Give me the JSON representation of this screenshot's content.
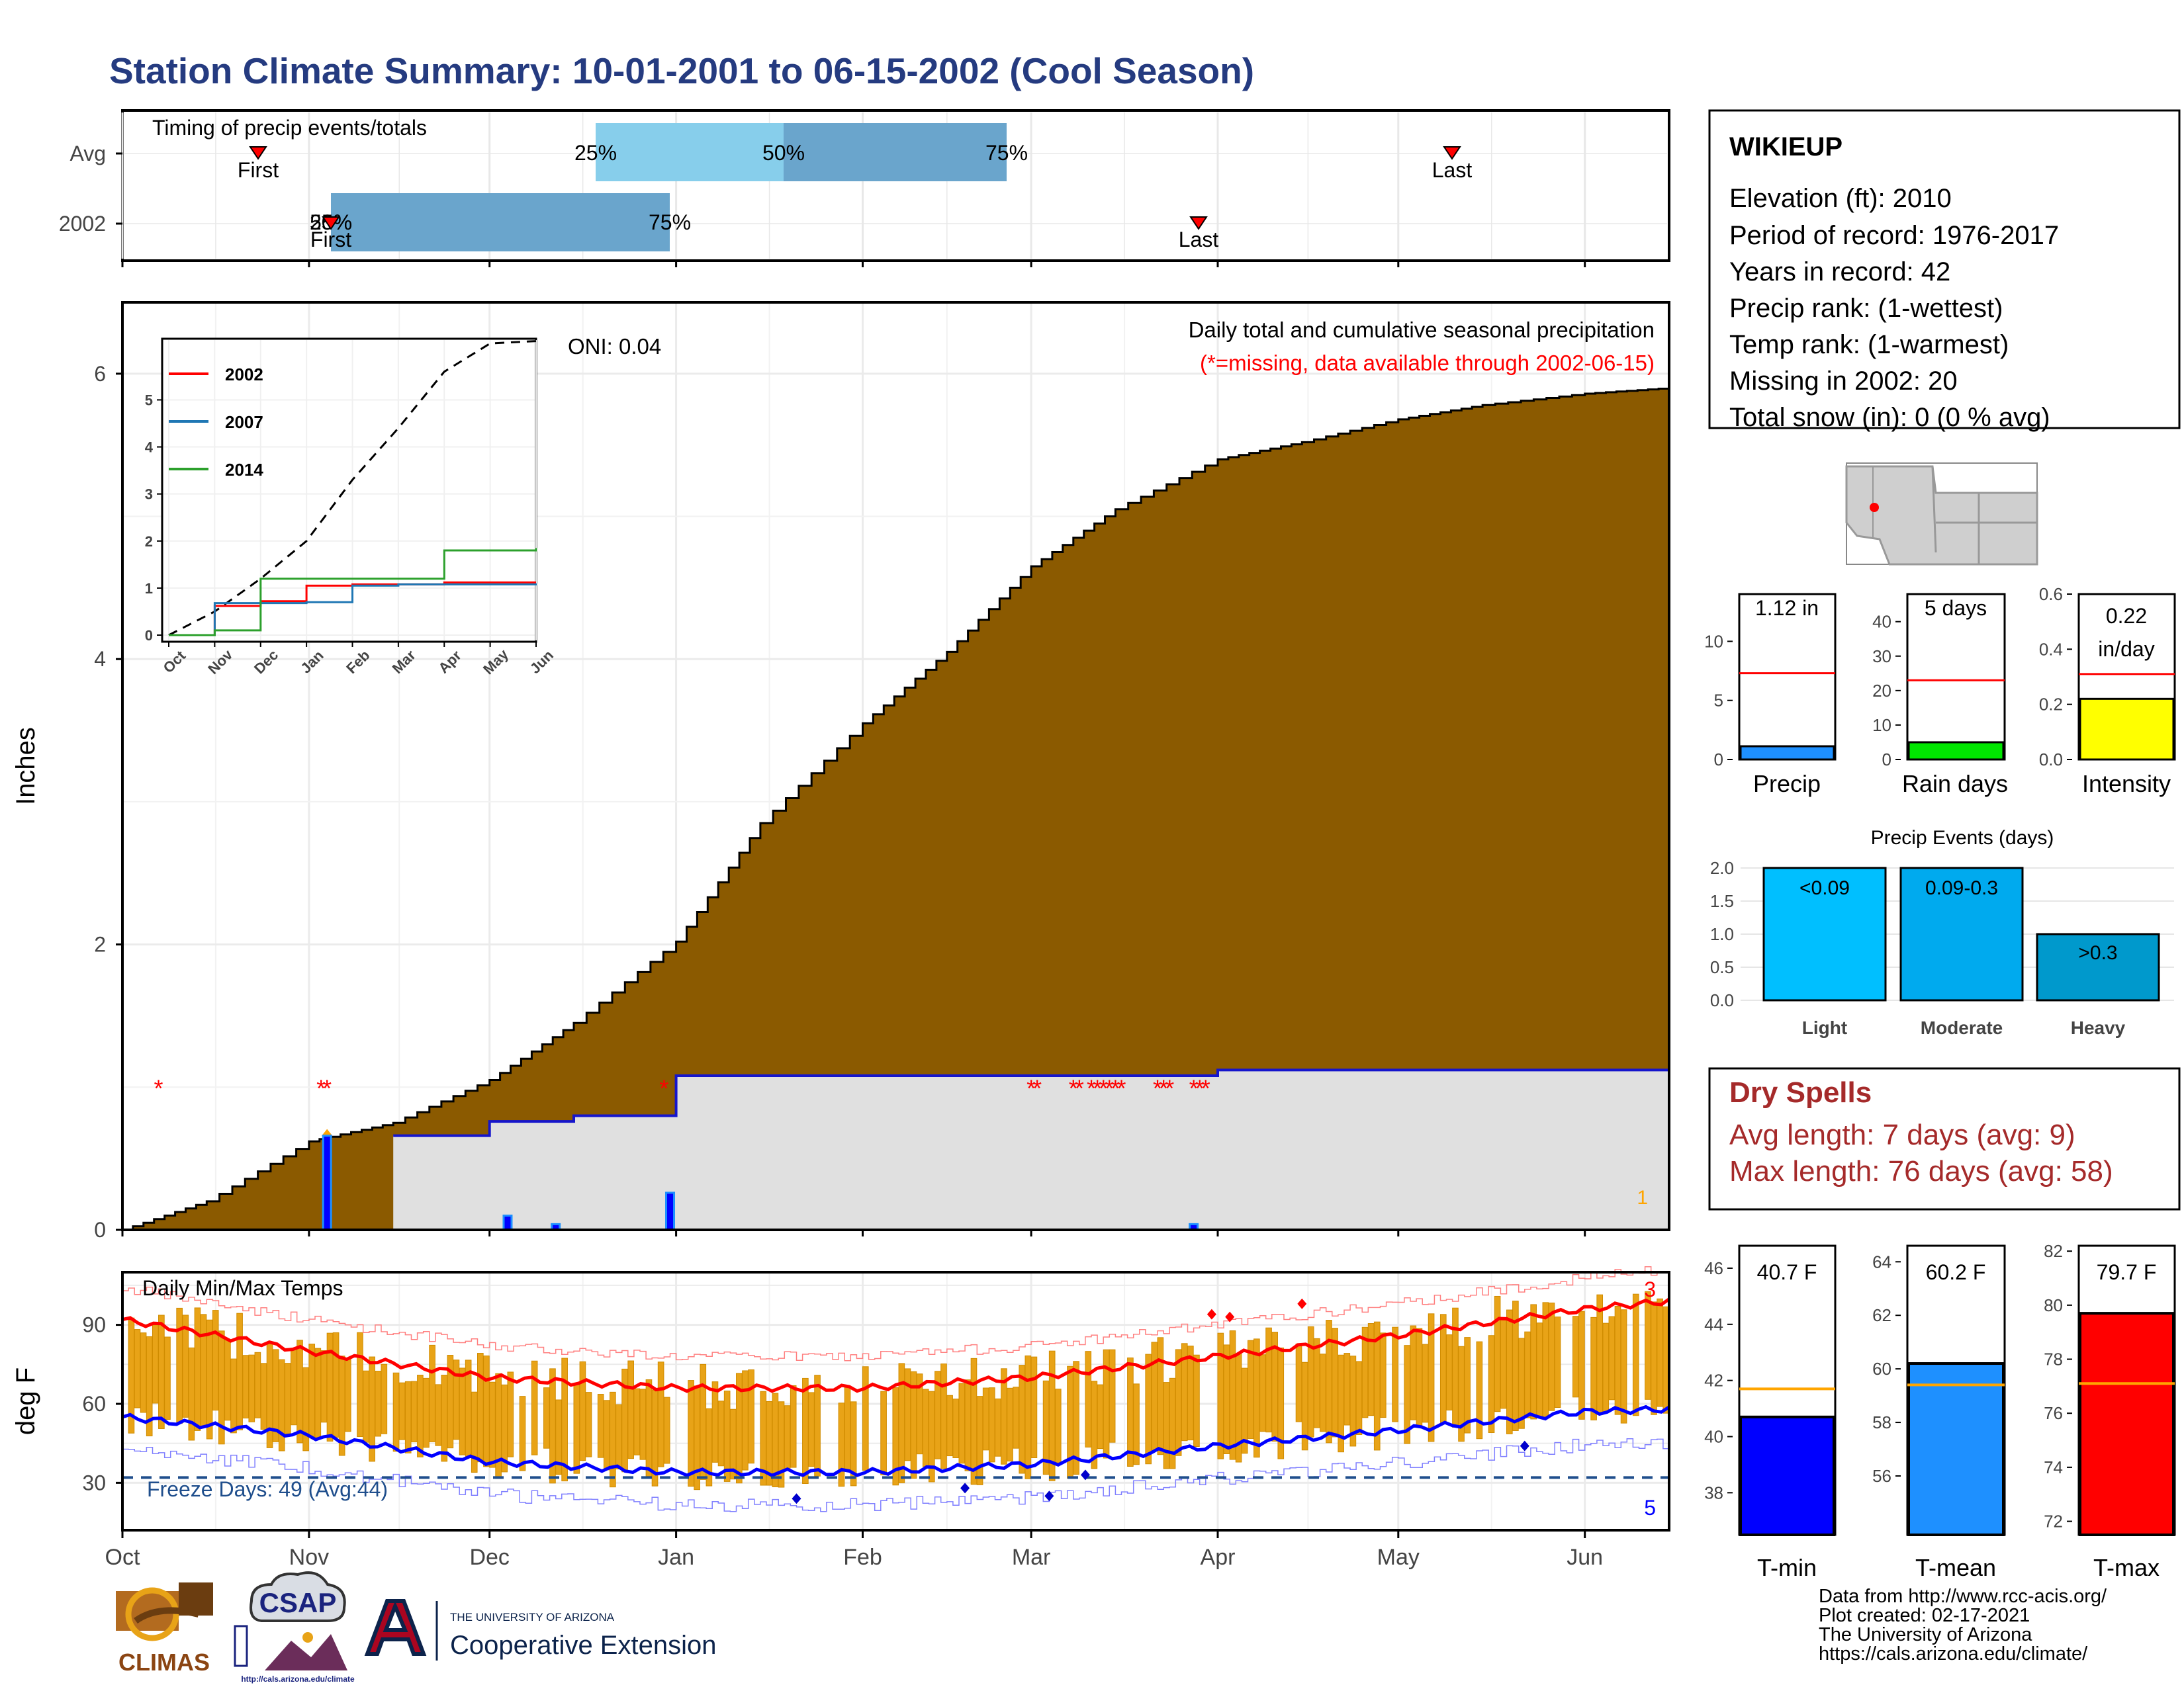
{
  "title": "Station Climate Summary: 10-01-2001 to 06-15-2002 (Cool Season)",
  "colors": {
    "title": "#253b80",
    "precip_fill": "#8b5a00",
    "avg_fill": "#e0e0e0",
    "avg_line": "#1515cc",
    "missing": "#ff0000",
    "timing_light": "#87ceeb",
    "timing_dark": "#6aa5cc",
    "dry_spells": "#a52a2a",
    "tmin": "#0000ff",
    "tmean": "#1e90ff",
    "tmax": "#ff0000",
    "temp_bar": "#e8a317",
    "avg_marker": "#ffa500",
    "freeze_line": "#1f4e8c"
  },
  "timing": {
    "title": "Timing of precip events/totals",
    "rows": [
      "Avg",
      "2002"
    ],
    "avg": {
      "first": "First",
      "last": "Last",
      "q25": "25%",
      "q50": "50%",
      "q75": "75%"
    },
    "y2002": {
      "first": "First",
      "last": "Last",
      "q25": "25%",
      "q50": "50%",
      "q75": "75%"
    }
  },
  "precip_panel": {
    "ylabel": "Inches",
    "oni": "ONI: 0.04",
    "subtitle": "Daily total and cumulative seasonal precipitation",
    "missing_note": "(*=missing, data available through 2002-06-15)",
    "yticks": [
      "0",
      "2",
      "4",
      "6"
    ],
    "corner_number": "1"
  },
  "inset": {
    "legend": [
      {
        "label": "2002",
        "color": "#ff0000"
      },
      {
        "label": "2007",
        "color": "#1f77b4"
      },
      {
        "label": "2014",
        "color": "#2ca02c"
      }
    ],
    "yticks": [
      "0",
      "1",
      "2",
      "3",
      "4",
      "5"
    ],
    "xticks": [
      "Oct",
      "Nov",
      "Dec",
      "Jan",
      "Feb",
      "Mar",
      "Apr",
      "May",
      "Jun"
    ]
  },
  "temp_panel": {
    "title": "Daily Min/Max Temps",
    "ylabel": "deg F",
    "yticks": [
      "30",
      "60",
      "90"
    ],
    "freeze_days": "Freeze Days: 49 (Avg:44)",
    "count_top": "3",
    "count_bottom": "5"
  },
  "xaxis_months": [
    "Oct",
    "Nov",
    "Dec",
    "Jan",
    "Feb",
    "Mar",
    "Apr",
    "May",
    "Jun"
  ],
  "station": {
    "name": "WIKIEUP",
    "lines": [
      "Elevation (ft): 2010",
      "Period of record: 1976-2017",
      "Years in record: 42",
      "Precip rank:  (1-wettest)",
      "Temp rank:  (1-warmest)",
      "Missing in 2002: 20",
      "Total snow (in): 0 (0 % avg)"
    ]
  },
  "mini_bars": [
    {
      "label": "Precip",
      "value_text": "1.12 in",
      "value": 1.12,
      "avg": 7.3,
      "ymax": 14,
      "yticks": [
        "0",
        "5",
        "10"
      ],
      "color": "#1e90ff"
    },
    {
      "label": "Rain days",
      "value_text": "5 days",
      "value": 5,
      "avg": 23,
      "ymax": 48,
      "yticks": [
        "0",
        "10",
        "20",
        "30",
        "40"
      ],
      "color": "#00e600"
    },
    {
      "label": "Intensity",
      "value_text_1": "0.22",
      "value_text_2": "in/day",
      "value": 0.22,
      "avg": 0.31,
      "ymax": 0.6,
      "yticks": [
        "0.0",
        "0.2",
        "0.4",
        "0.6"
      ],
      "color": "#ffff00"
    }
  ],
  "precip_events": {
    "title": "Precip Events (days)",
    "yticks": [
      "0.0",
      "0.5",
      "1.0",
      "1.5",
      "2.0"
    ],
    "bars": [
      {
        "label": "Light",
        "text": "<0.09",
        "value": 2,
        "color": "#00bfff"
      },
      {
        "label": "Moderate",
        "text": "0.09-0.3",
        "value": 2,
        "color": "#00aaee"
      },
      {
        "label": "Heavy",
        "text": ">0.3",
        "value": 1,
        "color": "#0099cc"
      }
    ]
  },
  "dry_spells": {
    "title": "Dry Spells",
    "avg_length": "Avg length: 7 days (avg: 9)",
    "max_length": "Max length: 76 days (avg: 58)"
  },
  "temp_bars": [
    {
      "label": "T-min",
      "value_text": "40.7 F",
      "value": 40.7,
      "avg": 41.7,
      "ymin": 36.5,
      "ymax": 46.8,
      "yticks": [
        "38",
        "40",
        "42",
        "44",
        "46"
      ],
      "color": "#0000ff"
    },
    {
      "label": "T-mean",
      "value_text": "60.2 F",
      "value": 60.2,
      "avg": 59.4,
      "ymin": 53.8,
      "ymax": 64.6,
      "yticks": [
        "56",
        "58",
        "60",
        "62",
        "64"
      ],
      "color": "#1e90ff"
    },
    {
      "label": "T-max",
      "value_text": "79.7 F",
      "value": 79.7,
      "avg": 77.1,
      "ymin": 71.5,
      "ymax": 82.2,
      "yticks": [
        "72",
        "74",
        "76",
        "78",
        "80",
        "82"
      ],
      "color": "#ff0000"
    }
  ],
  "credits": [
    "Data from http://www.rcc-acis.org/",
    "Plot created: 02-17-2021",
    "The University of Arizona",
    "https://cals.arizona.edu/climate/"
  ],
  "logos": {
    "climas": "CLIMAS",
    "csap": "CSAP",
    "csap_url": "http://cals.arizona.edu/climate",
    "ua_top": "THE UNIVERSITY OF ARIZONA",
    "ua_bottom": "Cooperative Extension"
  },
  "chart_data": [
    {
      "type": "area",
      "title": "Daily total and cumulative seasonal precipitation",
      "ylabel": "Inches",
      "ylim": [
        0,
        6.5
      ],
      "x": [
        "2001-10-01",
        "2001-10-15",
        "2001-11-01",
        "2001-11-15",
        "2001-12-01",
        "2001-12-15",
        "2002-01-01",
        "2002-01-15",
        "2002-02-01",
        "2002-02-15",
        "2002-03-01",
        "2002-03-15",
        "2002-04-01",
        "2002-04-15",
        "2002-05-01",
        "2002-05-15",
        "2002-06-01",
        "2002-06-15"
      ],
      "series": [
        {
          "name": "",
          "values": [
            0.0,
            0.2,
            0.62,
            0.75,
            1.05,
            1.45,
            2.02,
            2.85,
            3.55,
            4.05,
            4.65,
            5.05,
            5.4,
            5.52,
            5.68,
            5.78,
            5.86,
            5.9
          ]
        },
        {
          "name": "",
          "values": [
            0.0,
            0.0,
            0.0,
            0.66,
            0.76,
            0.8,
            1.08,
            1.08,
            1.08,
            1.08,
            1.08,
            1.08,
            1.12,
            1.12,
            1.12,
            1.12,
            1.12,
            1.12
          ]
        }
      ],
      "daily_bars": [
        {
          "date": "2001-11-04",
          "value": 0.66
        },
        {
          "date": "2001-12-04",
          "value": 0.1
        },
        {
          "date": "2001-12-12",
          "value": 0.04
        },
        {
          "date": "2001-12-31",
          "value": 0.26
        },
        {
          "date": "2002-03-28",
          "value": 0.04
        }
      ],
      "missing_dates": [
        "2001-10-07",
        "2001-11-03",
        "2001-11-04",
        "2001-12-30",
        "2002-03-01",
        "2002-03-02",
        "2002-03-08",
        "2002-03-09",
        "2002-03-11",
        "2002-03-12",
        "2002-03-13",
        "2002-03-14",
        "2002-03-15",
        "2002-03-16",
        "2002-03-22",
        "2002-03-23",
        "2002-03-24",
        "2002-03-28",
        "2002-03-29",
        "2002-03-30"
      ]
    },
    {
      "type": "line",
      "title": "",
      "ylim": [
        0,
        6.3
      ],
      "x": [
        "Oct",
        "Nov",
        "Dec",
        "Jan",
        "Feb",
        "Mar",
        "Apr",
        "May",
        "Jun"
      ],
      "series": [
        {
          "name": "",
          "values": [
            0.0,
            0.5,
            1.2,
            2.0,
            3.3,
            4.4,
            5.6,
            6.2,
            6.25
          ]
        },
        {
          "name": "2002",
          "values": [
            0.0,
            0.62,
            0.72,
            1.05,
            1.08,
            1.08,
            1.12,
            1.12,
            1.12
          ]
        },
        {
          "name": "2007",
          "values": [
            0.0,
            0.68,
            0.68,
            0.7,
            1.05,
            1.08,
            1.08,
            1.08,
            1.1
          ]
        },
        {
          "name": "2014",
          "values": [
            0.0,
            0.1,
            1.2,
            1.2,
            1.2,
            1.2,
            1.8,
            1.8,
            1.85
          ]
        }
      ]
    },
    {
      "type": "line",
      "title": "Daily Min/Max Temps",
      "ylabel": "deg F",
      "ylim": [
        12,
        110
      ],
      "x": [
        "2001-10-01",
        "2001-11-01",
        "2001-12-01",
        "2002-01-01",
        "2002-02-01",
        "2002-03-01",
        "2002-04-01",
        "2002-05-01",
        "2002-06-01",
        "2002-06-15"
      ],
      "series": [
        {
          "name": "",
          "values": [
            92,
            80,
            70,
            66,
            66,
            70,
            78,
            86,
            96,
            99
          ]
        },
        {
          "name": "",
          "values": [
            55,
            48,
            38,
            34,
            34,
            37,
            44,
            50,
            57,
            58
          ]
        }
      ],
      "freeze_threshold": 32
    }
  ]
}
